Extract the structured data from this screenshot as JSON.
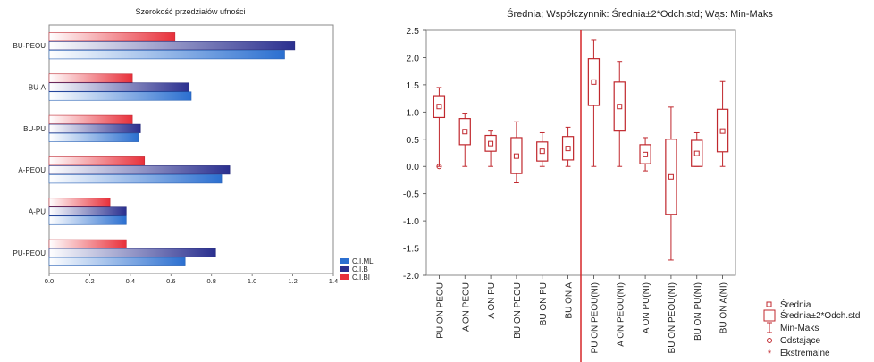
{
  "chart_data": [
    {
      "type": "bar",
      "orientation": "horizontal",
      "title": "Szerokość przedziałów ufności",
      "categories": [
        "BU-PEOU",
        "BU-A",
        "BU-PU",
        "A-PEOU",
        "A-PU",
        "PU-PEOU"
      ],
      "series": [
        {
          "name": "C.I.BI",
          "color": "#e8303a",
          "values": [
            0.62,
            0.41,
            0.41,
            0.47,
            0.3,
            0.38
          ]
        },
        {
          "name": "C.I.B",
          "color": "#2a2f8f",
          "values": [
            1.21,
            0.69,
            0.45,
            0.89,
            0.38,
            0.82
          ]
        },
        {
          "name": "C.I.ML",
          "color": "#2b6fd0",
          "values": [
            1.16,
            0.7,
            0.44,
            0.85,
            0.38,
            0.67
          ]
        }
      ],
      "xlim": [
        0,
        1.4
      ],
      "xticks": [
        "0.0",
        "0.2",
        "0.4",
        "0.6",
        "0.8",
        "1.0",
        "1.2",
        "1.4"
      ],
      "legend": [
        "C.I.ML",
        "C.I.B",
        "C.I.BI"
      ],
      "legend_position": "bottom-right",
      "grid": false
    },
    {
      "type": "boxplot",
      "title": "Średnia; Współczynnik: Średnia±2*Odch.std; Wąs: Min-Maks",
      "categories": [
        "PU ON PEOU",
        "A ON PEOU",
        "A ON PU",
        "BU ON PEOU",
        "BU ON PU",
        "BU ON A",
        "PU ON PEOU(NI)",
        "A ON PEOU(NI)",
        "A ON PU(NI)",
        "BU ON PEOU(NI)",
        "BU ON PU(NI)",
        "BU ON A(NI)"
      ],
      "mean": [
        1.1,
        0.64,
        0.42,
        0.19,
        0.28,
        0.33,
        1.55,
        1.1,
        0.22,
        -0.19,
        0.24,
        0.65
      ],
      "box_low": [
        0.9,
        0.4,
        0.28,
        -0.13,
        0.1,
        0.12,
        1.12,
        0.65,
        0.05,
        -0.88,
        0.0,
        0.27
      ],
      "box_high": [
        1.3,
        0.88,
        0.57,
        0.53,
        0.45,
        0.55,
        1.98,
        1.55,
        0.4,
        0.5,
        0.48,
        1.05
      ],
      "whisker_min": [
        0.0,
        0.0,
        0.0,
        -0.3,
        0.0,
        0.0,
        0.0,
        0.0,
        -0.08,
        -1.72,
        0.0,
        0.0
      ],
      "whisker_max": [
        1.45,
        0.98,
        0.65,
        0.82,
        0.62,
        0.72,
        2.32,
        1.93,
        0.53,
        1.09,
        0.62,
        1.56
      ],
      "outliers": [
        [
          0,
          0.0
        ]
      ],
      "ylim": [
        -2.0,
        2.5
      ],
      "yticks": [
        "-2.0",
        "-1.5",
        "-1.0",
        "-0.5",
        "0.0",
        "0.5",
        "1.0",
        "1.5",
        "2.0",
        "2.5"
      ],
      "divider_after_category": 5,
      "legend": [
        "Średnia",
        "Średnia±2*Odch.std",
        "Min-Maks",
        "Odstające",
        "Ekstremalne"
      ],
      "legend_position": "bottom-right",
      "grid": false,
      "color": "#c0272d"
    }
  ]
}
